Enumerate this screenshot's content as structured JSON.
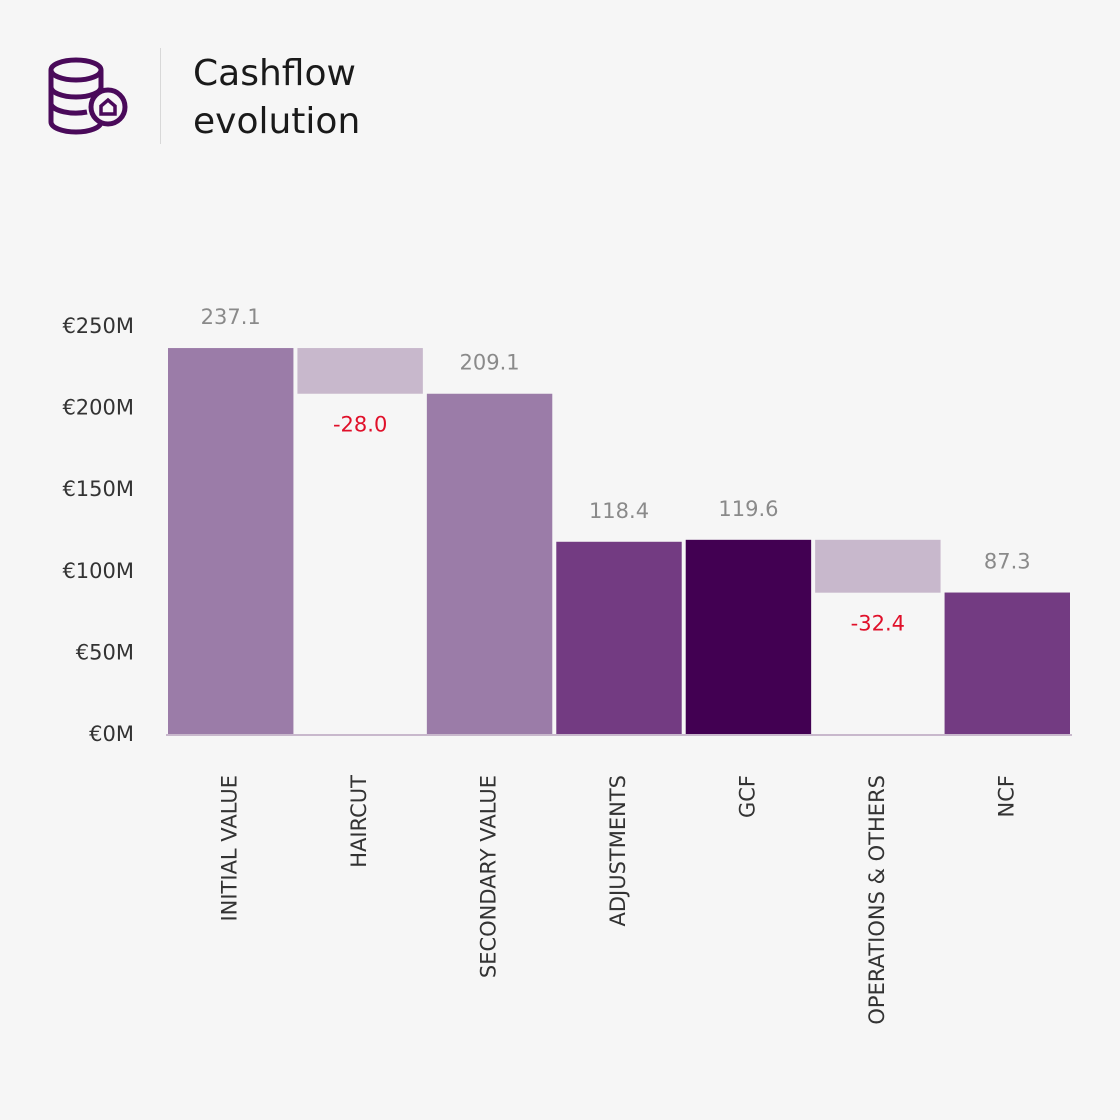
{
  "title": "Cashflow evolution",
  "chart_data": {
    "type": "waterfall",
    "categories": [
      "INITIAL VALUE",
      "HAIRCUT",
      "SECONDARY VALUE",
      "ADJUSTMENTS",
      "GCF",
      "OPERATIONS & OTHERS",
      "NCF"
    ],
    "values": [
      237.1,
      -28.0,
      209.1,
      118.4,
      119.6,
      -32.4,
      87.3
    ],
    "value_labels": [
      "237.1",
      "-28.0",
      "209.1",
      "118.4",
      "119.6",
      "-32.4",
      "87.3"
    ],
    "kinds": [
      "total",
      "delta",
      "total",
      "total",
      "total",
      "delta",
      "total"
    ],
    "colors": [
      "#9b7ca8",
      "#c8b8cc",
      "#9b7ca8",
      "#733b82",
      "#420052",
      "#c8b8cc",
      "#733b82"
    ],
    "total_label_color": "#8a8a8a",
    "delta_label_color": "#e0102a",
    "ylim": [
      0,
      250
    ],
    "yticks": [
      {
        "value": 0,
        "label": "€0M"
      },
      {
        "value": 50,
        "label": "€50M"
      },
      {
        "value": 100,
        "label": "€100M"
      },
      {
        "value": 150,
        "label": "€150M"
      },
      {
        "value": 200,
        "label": "€200M"
      },
      {
        "value": 250,
        "label": "€250M"
      }
    ]
  }
}
